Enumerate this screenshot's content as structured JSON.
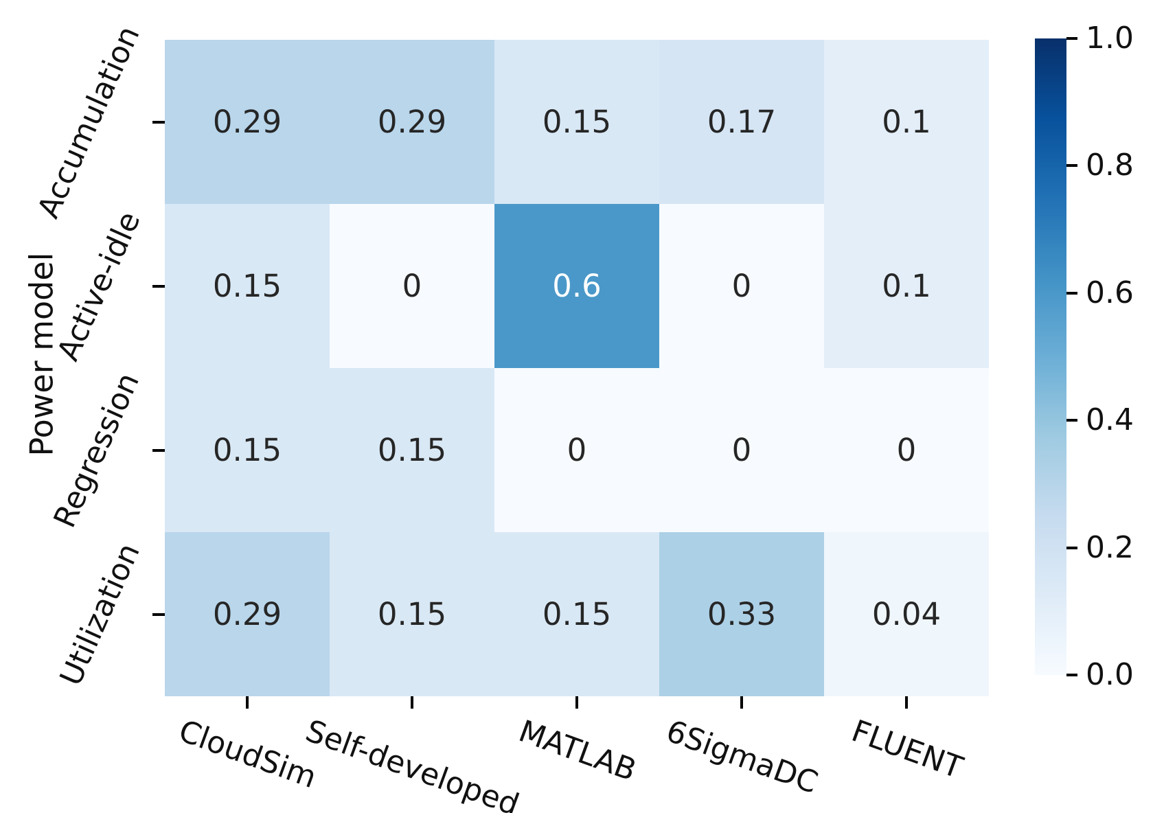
{
  "chart_data": {
    "type": "heatmap",
    "title": "",
    "xlabel": "",
    "ylabel": "Power model",
    "x_categories": [
      "CloudSim",
      "Self-developed",
      "MATLAB",
      "6SigmaDC",
      "FLUENT"
    ],
    "y_categories": [
      "Accumulation",
      "Active-idle",
      "Regression",
      "Utilization"
    ],
    "values": [
      [
        0.29,
        0.29,
        0.15,
        0.17,
        0.1
      ],
      [
        0.15,
        0,
        0.6,
        0,
        0.1
      ],
      [
        0.15,
        0.15,
        0,
        0,
        0
      ],
      [
        0.29,
        0.15,
        0.15,
        0.33,
        0.04
      ]
    ],
    "value_format": "2-significant-digits",
    "grid": false,
    "legend_position": "right-colorbar",
    "colorbar": {
      "min": 0.0,
      "max": 1.0,
      "tick_labels": [
        "1.0",
        "0.8",
        "0.6",
        "0.4",
        "0.2",
        "0.0"
      ]
    },
    "colormap": {
      "name": "Blues",
      "stops": [
        [
          0.0,
          [
            247,
            251,
            255
          ]
        ],
        [
          0.125,
          [
            222,
            235,
            247
          ]
        ],
        [
          0.25,
          [
            198,
            219,
            239
          ]
        ],
        [
          0.375,
          [
            158,
            202,
            225
          ]
        ],
        [
          0.5,
          [
            107,
            174,
            214
          ]
        ],
        [
          0.625,
          [
            66,
            146,
            198
          ]
        ],
        [
          0.75,
          [
            33,
            113,
            181
          ]
        ],
        [
          0.875,
          [
            8,
            81,
            156
          ]
        ],
        [
          1.0,
          [
            8,
            48,
            107
          ]
        ]
      ]
    },
    "annotation_colors": {
      "dark": "#262626",
      "light": "#ffffff"
    }
  }
}
